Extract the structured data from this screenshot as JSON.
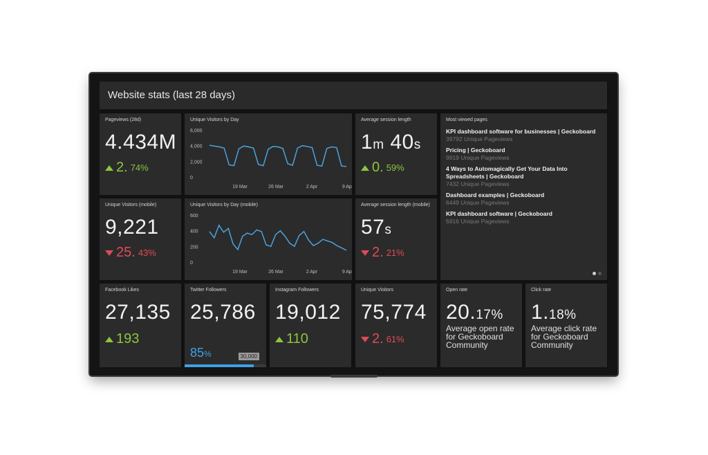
{
  "header": {
    "title": "Website stats (last 28 days)"
  },
  "tiles": {
    "pageviews": {
      "title": "Pageviews (28d)",
      "value": "4.434M",
      "delta_int": "2.",
      "delta_dec": "74%"
    },
    "uv_by_day": {
      "title": "Unique Visitors by Day",
      "y_ticks": [
        "6,000",
        "4,000",
        "2,000",
        "0"
      ],
      "x_ticks": [
        "19 Mar",
        "26 Mar",
        "2 Apr",
        "9 Apr"
      ]
    },
    "avg_session": {
      "title": "Average session length",
      "value_a": "1",
      "unit_a": "m",
      "value_b": "40",
      "unit_b": "s",
      "delta_int": "0.",
      "delta_dec": "59%"
    },
    "most_viewed": {
      "title": "Most viewed pages",
      "items": [
        {
          "title": "KPI dashboard software for businesses | Geckoboard",
          "sub": "39792 Unique Pageviews"
        },
        {
          "title": "Pricing | Geckoboard",
          "sub": "9919 Unique Pageviews"
        },
        {
          "title": "4 Ways to Automagically Get Your Data Into Spreadsheets | Geckoboard",
          "sub": "7432 Unique Pageviews"
        },
        {
          "title": "Dashboard examples | Geckoboard",
          "sub": "6449 Unique Pageviews"
        },
        {
          "title": "KPI dashboard software | Geckoboard",
          "sub": "5916 Unique Pageviews"
        }
      ]
    },
    "uv_mobile": {
      "title": "Unique Visitors (mobile)",
      "value": "9,221",
      "delta_int": "25.",
      "delta_dec": "43%"
    },
    "uv_by_day_mobile": {
      "title": "Unique Visitors by Day (mobile)",
      "y_ticks": [
        "600",
        "400",
        "200",
        "0"
      ],
      "x_ticks": [
        "19 Mar",
        "26 Mar",
        "2 Apr",
        "9 Apr"
      ]
    },
    "avg_session_mobile": {
      "title": "Average session length (mobile)",
      "value": "57",
      "unit": "s",
      "delta_int": "2.",
      "delta_dec": "21%"
    },
    "facebook": {
      "title": "Facebook Likes",
      "value": "27,135",
      "delta": "193"
    },
    "twitter": {
      "title": "Twitter Followers",
      "value": "25,786",
      "pct": "85",
      "pct_unit": "%",
      "goal": "30,000",
      "progress": 0.85
    },
    "instagram": {
      "title": "Instagram Followers",
      "value": "19,012",
      "delta": "110"
    },
    "unique_visitors": {
      "title": "Unique Visitors",
      "value": "75,774",
      "delta_int": "2.",
      "delta_dec": "61%"
    },
    "open_rate": {
      "title": "Open rate",
      "value_int": "20.",
      "value_dec": "17%",
      "desc": "Average open rate for Geckoboard Community"
    },
    "click_rate": {
      "title": "Click rate",
      "value_int": "1.",
      "value_dec": "18%",
      "desc": "Average click rate for Geckoboard Community"
    }
  },
  "colors": {
    "line": "#4aa3df",
    "up": "#8cc63f",
    "down": "#e04a5a",
    "goal_bar": "#3ea0e8"
  },
  "chart_data": [
    {
      "type": "line",
      "title": "Unique Visitors by Day",
      "ylim": [
        0,
        6000
      ],
      "x_ticks": [
        "19 Mar",
        "26 Mar",
        "2 Apr",
        "9 Apr"
      ],
      "series": [
        {
          "values": [
            4050,
            3950,
            3850,
            3700,
            1550,
            1450,
            3600,
            3950,
            3850,
            3700,
            1600,
            1450,
            3550,
            3900,
            3850,
            3650,
            1700,
            1500,
            3700,
            4000,
            3900,
            3750,
            1500,
            1400,
            3650,
            3850,
            3750,
            1400,
            1350
          ]
        }
      ]
    },
    {
      "type": "line",
      "title": "Unique Visitors by Day (mobile)",
      "ylim": [
        0,
        600
      ],
      "x_ticks": [
        "19 Mar",
        "26 Mar",
        "2 Apr",
        "9 Apr"
      ],
      "series": [
        {
          "values": [
            390,
            310,
            470,
            380,
            430,
            230,
            160,
            330,
            370,
            350,
            410,
            390,
            220,
            200,
            350,
            400,
            330,
            240,
            200,
            340,
            390,
            280,
            210,
            240,
            290,
            270,
            250,
            210,
            180,
            150
          ]
        }
      ]
    }
  ]
}
